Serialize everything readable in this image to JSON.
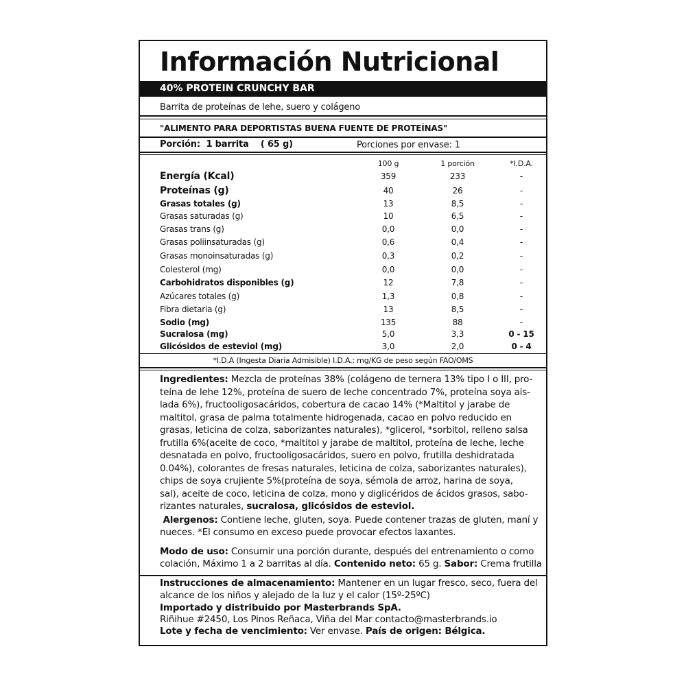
{
  "header": {
    "title": "Información Nutricional",
    "product": "40% PROTEIN CRUNCHY BAR",
    "description": "Barrita de proteínas de lehe, suero y colágeno",
    "claim": "\"ALIMENTO PARA DEPORTISTAS BUENA FUENTE DE PROTEÍNAS\"",
    "serving": "Porción:  1 barrita    ( 65 g)",
    "servings_per_pack": "Porciones por envase: 1"
  },
  "table": {
    "columns": [
      "100 g",
      "1 porción",
      "*I.D.A."
    ],
    "rows": [
      {
        "name": "Energía (Kcal)",
        "per_100g": "359",
        "per_portion": "233",
        "ida": "-",
        "bold": true
      },
      {
        "name": "Proteínas (g)",
        "per_100g": "40",
        "per_portion": "26",
        "ida": "-",
        "bold": true
      },
      {
        "name": "Grasas totales (g)",
        "per_100g": "13",
        "per_portion": "8,5",
        "ida": "-",
        "bold": true
      },
      {
        "name": "Grasas saturadas (g)",
        "per_100g": "10",
        "per_portion": "6,5",
        "ida": "-"
      },
      {
        "name": "Grasas trans (g)",
        "per_100g": "0,0",
        "per_portion": "0,0",
        "ida": "-"
      },
      {
        "name": "Grasas poliinsaturadas (g)",
        "per_100g": "0,6",
        "per_portion": "0,4",
        "ida": "-"
      },
      {
        "name": "Grasas monoinsaturadas (g)",
        "per_100g": "0,3",
        "per_portion": "0,2",
        "ida": "-"
      },
      {
        "name": "Colesterol (mg)",
        "per_100g": "0,0",
        "per_portion": "0,0",
        "ida": "-"
      },
      {
        "name": "Carbohidratos disponibles (g)",
        "per_100g": "12",
        "per_portion": "7,8",
        "ida": "-",
        "bold": true
      },
      {
        "name": "Azúcares totales (g)",
        "per_100g": "1,3",
        "per_portion": "0,8",
        "ida": "-"
      },
      {
        "name": "Fibra dietaria (g)",
        "per_100g": "13",
        "per_portion": "8,5",
        "ida": "-"
      },
      {
        "name": "Sodio (mg)",
        "per_100g": "135",
        "per_portion": "88",
        "ida": "-",
        "bold": true
      },
      {
        "name": "Sucralosa (mg)",
        "per_100g": "5,0",
        "per_portion": "3,3",
        "ida": "0 - 15",
        "bold": true
      },
      {
        "name": "Glicósidos de esteviol (mg)",
        "per_100g": "3,0",
        "per_portion": "2,0",
        "ida": "0 - 4",
        "bold": true
      }
    ],
    "footnote": "*I.D.A (Ingesta Diaria Admisible) I.D.A.: mg/KG de peso según FAO/OMS"
  },
  "ingredients": {
    "lines": [
      [
        {
          "text": "Ingredientes:",
          "bold": true
        },
        " Mezcla de proteínas 38% (colágeno de ternera 13% tipo I o III, pro-"
      ],
      [
        "teína de lehe 12%, proteína de suero de leche concentrado 7%, proteína soya ais-"
      ],
      [
        "lada 6%), fructooligosacáridos, cobertura de cacao 14% (*Maltitol y jarabe de"
      ],
      [
        "maltitol, grasa de palma totalmente hidrogenada, cacao en polvo reducido en"
      ],
      [
        "grasas, leticina de colza, saborizantes naturales), *glicerol, *sorbitol, relleno salsa"
      ],
      [
        "frutilla 6%(aceite de coco, *maltitol y jarabe de maltitol, proteína de leche, leche"
      ],
      [
        "desnatada en polvo, fructooligosacáridos, suero en polvo, frutilla deshidratada"
      ],
      [
        "0.04%), colorantes de fresas naturales, leticina de colza, saborizantes naturales),"
      ],
      [
        "chips de soya crujiente 5%(proteína de soya, sémola de arroz, harina de soya,"
      ],
      [
        "sal), aceite de coco, leticina de colza, mono y diglicéridos de ácidos grasos, sabo-"
      ],
      [
        "rizantes naturales, ",
        {
          "text": "sucralosa, glicósidos de esteviol.",
          "bold": true
        }
      ],
      [
        {
          "text": " Alergenos:",
          "bold": true
        },
        " Contiene leche, gluten, soya. Puede contener trazas de gluten, maní y"
      ],
      [
        "nueces. *El consumo en exceso puede provocar efectos laxantes."
      ],
      [
        {
          "text": "Modo de uso:",
          "bold": true
        },
        " Consumir una porción durante, después del entrenamiento o como"
      ],
      [
        "colación, Máximo 1 a 2 barritas al día. ",
        {
          "text": "Contenido neto:",
          "bold": true
        },
        " 65 g. ",
        {
          "text": "Sabor:",
          "bold": true
        },
        " Crema frutilla"
      ]
    ]
  },
  "storage": {
    "lines": [
      [
        {
          "text": "Instrucciones de almacenamiento:",
          "bold": true
        },
        " Mantener en un lugar fresco, seco, fuera del"
      ],
      [
        "alcance de los niños y alejado de la luz y el calor (15º-25ºC)"
      ],
      [
        {
          "text": "Importado y distribuido por Masterbrands SpA.",
          "bold": true
        }
      ],
      [
        "Riñihue #2450, Los Pinos Reñaca, Viña del Mar contacto@masterbrands.io"
      ],
      [
        {
          "text": "Lote y fecha de vencimiento:",
          "bold": true
        },
        " Ver envase. ",
        {
          "text": "País de origen: Bélgica.",
          "bold": true
        }
      ]
    ]
  }
}
